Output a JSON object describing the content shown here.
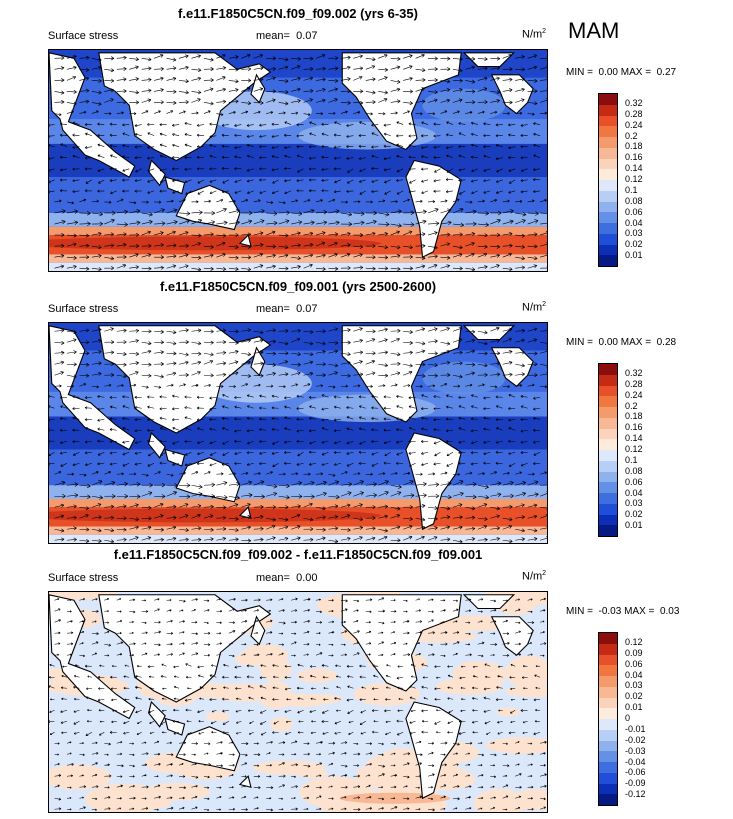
{
  "season_label": "MAM",
  "panels": [
    {
      "title": "f.e11.F1850C5CN.f09_f09.002 (yrs 6-35)",
      "left_label": "Surface stress",
      "mean_label": "mean=",
      "mean_value": "0.07",
      "units": "N/m",
      "units_exp": "2",
      "min_label": "MIN =",
      "min_value": "0.00",
      "max_label": "MAX =",
      "max_value": "0.27",
      "map_kind": "abs",
      "colorbar": {
        "labels": [
          "0.32",
          "0.28",
          "0.24",
          "0.2",
          "0.18",
          "0.16",
          "0.14",
          "0.12",
          "0.1",
          "0.08",
          "0.06",
          "0.04",
          "0.03",
          "0.02",
          "0.01"
        ],
        "colors": [
          "#8b0d0d",
          "#c42a14",
          "#e8502a",
          "#f07840",
          "#f59a6a",
          "#f8b896",
          "#fbd3bc",
          "#fdebdc",
          "#dde9fa",
          "#b8cff5",
          "#8fb1ee",
          "#6490e6",
          "#3e6fe0",
          "#1f4fd6",
          "#0c2fb8",
          "#061a86"
        ]
      }
    },
    {
      "title": "f.e11.F1850C5CN.f09_f09.001 (yrs 2500-2600)",
      "left_label": "Surface stress",
      "mean_label": "mean=",
      "mean_value": "0.07",
      "units": "N/m",
      "units_exp": "2",
      "min_label": "MIN =",
      "min_value": "0.00",
      "max_label": "MAX =",
      "max_value": "0.28",
      "map_kind": "abs",
      "colorbar": {
        "labels": [
          "0.32",
          "0.28",
          "0.24",
          "0.2",
          "0.18",
          "0.16",
          "0.14",
          "0.12",
          "0.1",
          "0.08",
          "0.06",
          "0.04",
          "0.03",
          "0.02",
          "0.01"
        ],
        "colors": [
          "#8b0d0d",
          "#c42a14",
          "#e8502a",
          "#f07840",
          "#f59a6a",
          "#f8b896",
          "#fbd3bc",
          "#fdebdc",
          "#dde9fa",
          "#b8cff5",
          "#8fb1ee",
          "#6490e6",
          "#3e6fe0",
          "#1f4fd6",
          "#0c2fb8",
          "#061a86"
        ]
      }
    },
    {
      "title": "f.e11.F1850C5CN.f09_f09.002 - f.e11.F1850C5CN.f09_f09.001",
      "left_label": "Surface stress",
      "mean_label": "mean=",
      "mean_value": "0.00",
      "units": "N/m",
      "units_exp": "2",
      "min_label": "MIN =",
      "min_value": "-0.03",
      "max_label": "MAX =",
      "max_value": "0.03",
      "map_kind": "diff",
      "colorbar": {
        "labels": [
          "0.12",
          "0.09",
          "0.06",
          "0.04",
          "0.03",
          "0.02",
          "0.01",
          "0",
          "-0.01",
          "-0.02",
          "-0.03",
          "-0.04",
          "-0.06",
          "-0.09",
          "-0.12"
        ],
        "colors": [
          "#8b0d0d",
          "#c42a14",
          "#e8502a",
          "#f07840",
          "#f59a6a",
          "#f8b896",
          "#fbd3bc",
          "#fdebdc",
          "#dde9fa",
          "#b8cff5",
          "#8fb1ee",
          "#6490e6",
          "#3e6fe0",
          "#1f4fd6",
          "#0c2fb8",
          "#061a86"
        ]
      }
    }
  ]
}
